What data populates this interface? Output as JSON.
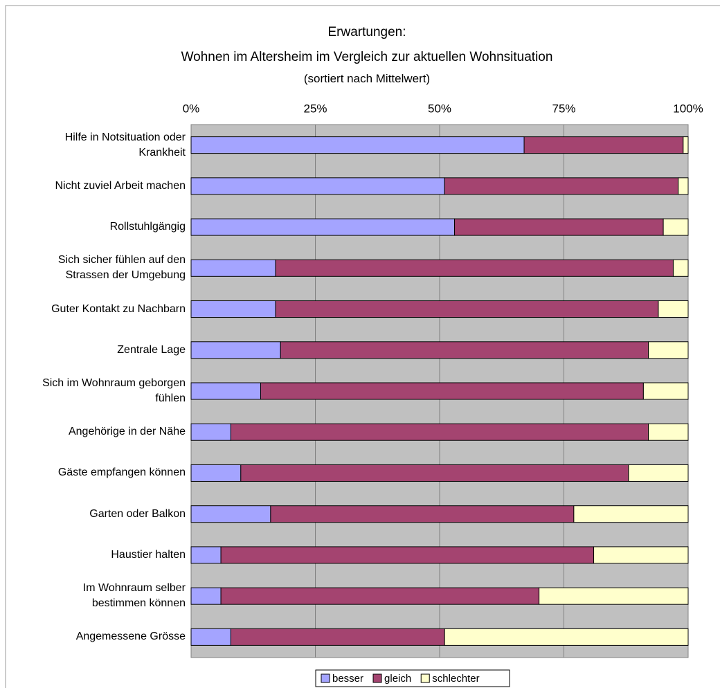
{
  "chart_data": {
    "type": "stacked-barh",
    "title": "Erwartungen:",
    "subtitle": "Wohnen im  Altersheim im Vergleich zur aktuellen Wohnsituation",
    "note": "(sortiert nach Mittelwert)",
    "categories": [
      "Hilfe in Notsituation oder\nKrankheit",
      "Nicht zuviel Arbeit machen",
      "Rollstuhlgängig",
      "Sich sicher fühlen auf den\nStrassen der Umgebung",
      "Guter Kontakt zu Nachbarn",
      "Zentrale Lage",
      "Sich im Wohnraum geborgen\nfühlen",
      "Angehörige in der Nähe",
      "Gäste empfangen können",
      "Garten oder Balkon",
      "Haustier halten",
      "Im Wohnraum selber\nbestimmen können",
      "Angemessene Grösse"
    ],
    "series": [
      {
        "name": "besser",
        "color": "#a4a4ff",
        "values": [
          67,
          51,
          53,
          17,
          17,
          18,
          14,
          8,
          10,
          16,
          6,
          6,
          8
        ]
      },
      {
        "name": "gleich",
        "color": "#a44470",
        "values": [
          32,
          47,
          42,
          80,
          77,
          74,
          77,
          84,
          78,
          61,
          75,
          64,
          43
        ]
      },
      {
        "name": "schlechter",
        "color": "#ffffcc",
        "values": [
          1,
          2,
          5,
          3,
          6,
          8,
          9,
          8,
          12,
          23,
          19,
          30,
          49
        ]
      }
    ],
    "xlim": [
      0,
      100
    ],
    "xticks": [
      {
        "value": 0,
        "label": "0%"
      },
      {
        "value": 25,
        "label": "25%"
      },
      {
        "value": 50,
        "label": "50%"
      },
      {
        "value": 75,
        "label": "75%"
      },
      {
        "value": 100,
        "label": "100%"
      }
    ],
    "grid": true,
    "legend": "bottom"
  }
}
